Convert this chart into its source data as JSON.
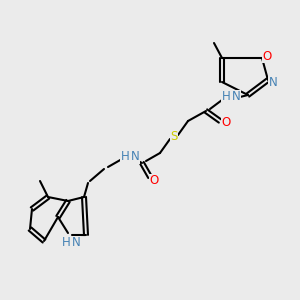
{
  "bg_color": "#ebebeb",
  "bond_color": "#000000",
  "line_width": 1.5,
  "atom_colors": {
    "N": "#4682b4",
    "NH": "#4682b4",
    "O": "#ff0000",
    "S": "#cccc00",
    "C": "#000000",
    "H": "#4682b4"
  },
  "font_size": 8.5
}
